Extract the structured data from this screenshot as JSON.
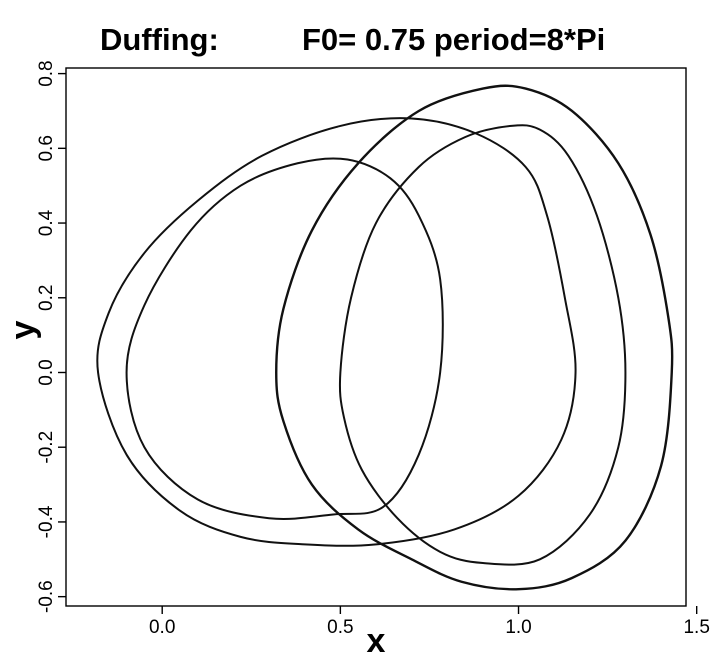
{
  "chart_data": {
    "type": "line",
    "title_left": "Duffing:",
    "title_right": "F0= 0.75 period=8*Pi",
    "xlabel": "x",
    "ylabel": "y",
    "xlim": [
      -0.27,
      1.47
    ],
    "ylim": [
      -0.625,
      0.815
    ],
    "xticks": [
      0.0,
      0.5,
      1.0,
      1.5
    ],
    "xtick_labels": [
      "0.0",
      "0.5",
      "1.0",
      "1.5"
    ],
    "yticks": [
      -0.6,
      -0.4,
      -0.2,
      0.0,
      0.2,
      0.4,
      0.6,
      0.8
    ],
    "ytick_labels": [
      "-0.6",
      "-0.4",
      "-0.2",
      "0.0",
      "0.2",
      "0.4",
      "0.6",
      "0.8"
    ],
    "grid": false,
    "series": [
      {
        "x": [
          -0.18,
          -0.15,
          -0.05,
          0.1,
          0.28,
          0.5,
          0.7,
          0.88,
          1.02,
          1.08,
          1.13,
          1.16,
          1.12,
          1.0,
          0.82,
          0.6,
          0.4,
          0.22,
          0.05,
          -0.1,
          -0.18
        ],
        "y": [
          0.0,
          0.16,
          0.32,
          0.46,
          0.58,
          0.66,
          0.68,
          0.64,
          0.55,
          0.42,
          0.2,
          0.0,
          -0.18,
          -0.33,
          -0.42,
          -0.46,
          -0.46,
          -0.44,
          -0.37,
          -0.22,
          0.0
        ]
      },
      {
        "x": [
          -0.1,
          -0.05,
          0.08,
          0.22,
          0.38,
          0.52,
          0.64,
          0.72,
          0.78,
          0.78,
          0.72,
          0.62,
          0.48,
          0.3,
          0.1,
          -0.05,
          -0.1
        ],
        "y": [
          0.0,
          0.18,
          0.38,
          0.5,
          0.56,
          0.57,
          0.52,
          0.42,
          0.25,
          0.0,
          -0.22,
          -0.36,
          -0.38,
          -0.39,
          -0.34,
          -0.2,
          0.0
        ]
      },
      {
        "x": [
          0.32,
          0.34,
          0.42,
          0.55,
          0.72,
          0.9,
          1.02,
          1.15,
          1.28,
          1.37,
          1.42,
          1.43,
          1.4,
          1.3,
          1.15,
          1.0,
          0.84,
          0.7,
          0.55,
          0.42,
          0.34,
          0.32
        ],
        "y": [
          0.0,
          0.17,
          0.38,
          0.56,
          0.7,
          0.76,
          0.76,
          0.7,
          0.56,
          0.37,
          0.15,
          0.0,
          -0.25,
          -0.45,
          -0.55,
          -0.58,
          -0.56,
          -0.5,
          -0.42,
          -0.3,
          -0.13,
          0.0
        ]
      },
      {
        "x": [
          0.5,
          0.53,
          0.6,
          0.72,
          0.85,
          0.98,
          1.06,
          1.14,
          1.22,
          1.28,
          1.3,
          1.28,
          1.2,
          1.06,
          0.9,
          0.78,
          0.66,
          0.56,
          0.51,
          0.5
        ],
        "y": [
          0.0,
          0.2,
          0.4,
          0.55,
          0.63,
          0.66,
          0.65,
          0.58,
          0.42,
          0.2,
          0.0,
          -0.2,
          -0.38,
          -0.5,
          -0.51,
          -0.48,
          -0.39,
          -0.26,
          -0.12,
          0.0
        ]
      }
    ]
  }
}
